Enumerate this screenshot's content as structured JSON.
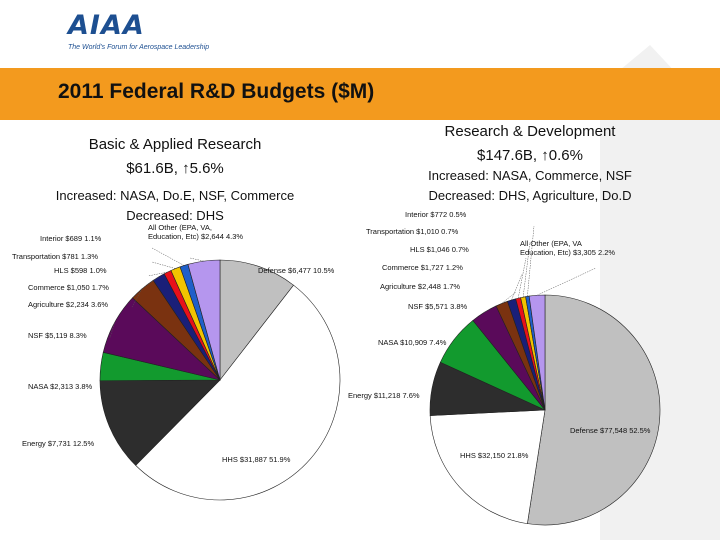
{
  "logo": {
    "name": "AIAA",
    "tagline": "The World's Forum for Aerospace Leadership"
  },
  "banner": {
    "title": "2011 Federal R&D Budgets ($M)"
  },
  "left": {
    "heading_line1": "Basic & Applied Research",
    "heading_line2": "$61.6B, ↑5.6%",
    "increased": "Increased: NASA, Do.E, NSF, Commerce",
    "decreased": "Decreased: DHS"
  },
  "right": {
    "heading_line1": "Research & Development",
    "heading_line2": "$147.6B, ↑0.6%",
    "increased": "Increased: NASA, Commerce, NSF",
    "decreased": "Decreased: DHS, Agriculture, Do.D"
  },
  "colors": {
    "banner": "#f39a1e",
    "logo": "#1d4f91"
  },
  "chart_data": [
    {
      "type": "pie",
      "title": "Basic & Applied Research",
      "slices": [
        {
          "label": "Defense  $6,477  10.5%",
          "value": 10.5,
          "color": "#c0c0c0"
        },
        {
          "label": "HHS  $31,887  51.9%",
          "value": 51.9,
          "color": "#ffffff"
        },
        {
          "label": "Energy  $7,731  12.5%",
          "value": 12.5,
          "color": "#2d2d2d"
        },
        {
          "label": "NASA  $2,313  3.8%",
          "value": 3.8,
          "color": "#129a2e"
        },
        {
          "label": "NSF  $5,119  8.3%",
          "value": 8.3,
          "color": "#5a0a5a"
        },
        {
          "label": "Agriculture  $2,234  3.6%",
          "value": 3.6,
          "color": "#7a3210"
        },
        {
          "label": "Commerce  $1,050  1.7%",
          "value": 1.7,
          "color": "#1a1f78"
        },
        {
          "label": "HLS  $598  1.0%",
          "value": 1.0,
          "color": "#e8101a"
        },
        {
          "label": "Transportation  $781  1.3%",
          "value": 1.3,
          "color": "#f2c400"
        },
        {
          "label": "Interior  $689  1.1%",
          "value": 1.1,
          "color": "#1f5fc9"
        },
        {
          "label": "All Other (EPA, VA, Education, Etc)  $2,644  4.3%",
          "value": 4.3,
          "color": "#b596ee"
        }
      ]
    },
    {
      "type": "pie",
      "title": "Research & Development",
      "slices": [
        {
          "label": "Defense  $77,548  52.5%",
          "value": 52.5,
          "color": "#c0c0c0"
        },
        {
          "label": "HHS  $32,150  21.8%",
          "value": 21.8,
          "color": "#ffffff"
        },
        {
          "label": "Energy  $11,218  7.6%",
          "value": 7.6,
          "color": "#2d2d2d"
        },
        {
          "label": "NASA  $10,909  7.4%",
          "value": 7.4,
          "color": "#129a2e"
        },
        {
          "label": "NSF  $5,571  3.8%",
          "value": 3.8,
          "color": "#5a0a5a"
        },
        {
          "label": "Agriculture  $2,448  1.7%",
          "value": 1.7,
          "color": "#7a3210"
        },
        {
          "label": "Commerce  $1,727  1.2%",
          "value": 1.2,
          "color": "#1a1f78"
        },
        {
          "label": "HLS  $1,046  0.7%",
          "value": 0.7,
          "color": "#e8101a"
        },
        {
          "label": "Transportation  $1,010  0.7%",
          "value": 0.7,
          "color": "#f2c400"
        },
        {
          "label": "Interior  $772  0.5%",
          "value": 0.5,
          "color": "#1f5fc9"
        },
        {
          "label": "All Other (EPA, VA Education, Etc)  $3,305  2.2%",
          "value": 2.2,
          "color": "#b596ee"
        }
      ]
    }
  ]
}
